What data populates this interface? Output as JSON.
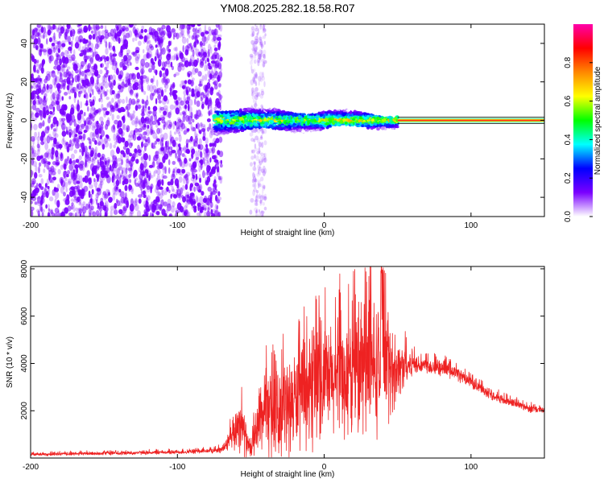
{
  "title": "YM08.2025.282.18.58.R07",
  "chart_data": [
    {
      "type": "heatmap",
      "name": "spectrogram",
      "xlabel": "Height of straight line (km)",
      "ylabel": "Frequency (Hz)",
      "xlim": [
        -200,
        150
      ],
      "ylim": [
        -50,
        50
      ],
      "xticks": [
        -200,
        -100,
        0,
        100
      ],
      "yticks": [
        -40,
        -20,
        0,
        20,
        40
      ],
      "noise_region_x": [
        -200,
        -70
      ],
      "noise_streak_x": [
        -50,
        -40
      ],
      "signal_band": {
        "x": [
          -75,
          50
        ],
        "half_width_hz": 6
      },
      "carrier_line": {
        "x": [
          50,
          150
        ],
        "frequency_hz": 0
      },
      "colorbar": {
        "label": "Normalized spectral amplitude",
        "range": [
          0,
          1
        ],
        "ticks": [
          "0.0",
          "0.2",
          "0.4",
          "0.6",
          "0.8"
        ],
        "tick_values": [
          0.0,
          0.2,
          0.4,
          0.6,
          0.8
        ],
        "colors": [
          "#ffffff",
          "#7a00ff",
          "#0000ff",
          "#00ffff",
          "#00ff00",
          "#ffff00",
          "#ff8800",
          "#ff0000",
          "#ff00aa"
        ]
      }
    },
    {
      "type": "line",
      "name": "snr",
      "xlabel": "Height of straight line (km)",
      "ylabel": "SNR (10 * v/v)",
      "xlim": [
        -200,
        150
      ],
      "ylim": [
        0,
        8100
      ],
      "xticks": [
        -200,
        -100,
        0,
        100
      ],
      "yticks": [
        2000,
        4000,
        6000,
        8000
      ],
      "color": "#ee2222",
      "envelope": {
        "x": [
          -200,
          -150,
          -100,
          -80,
          -70,
          -62,
          -58,
          -55,
          -52,
          -50,
          -45,
          -40,
          -35,
          -30,
          -25,
          -20,
          -10,
          0,
          10,
          20,
          30,
          35,
          40,
          45,
          50,
          60,
          70,
          80,
          90,
          100,
          110,
          120,
          130,
          140,
          150
        ],
        "base": [
          150,
          200,
          250,
          300,
          350,
          900,
          1600,
          1200,
          500,
          300,
          1500,
          2000,
          1800,
          2000,
          2200,
          2400,
          2700,
          3100,
          3300,
          3500,
          3700,
          3900,
          3800,
          3700,
          3800,
          4000,
          3900,
          3800,
          3600,
          3200,
          2800,
          2500,
          2300,
          2100,
          2000
        ],
        "amp": [
          80,
          90,
          100,
          120,
          150,
          800,
          1500,
          1200,
          600,
          400,
          1500,
          2200,
          2000,
          2200,
          2400,
          2500,
          2600,
          2800,
          3000,
          3100,
          3300,
          3500,
          3000,
          2500,
          1500,
          600,
          400,
          400,
          350,
          300,
          250,
          250,
          200,
          200,
          200
        ]
      }
    }
  ]
}
